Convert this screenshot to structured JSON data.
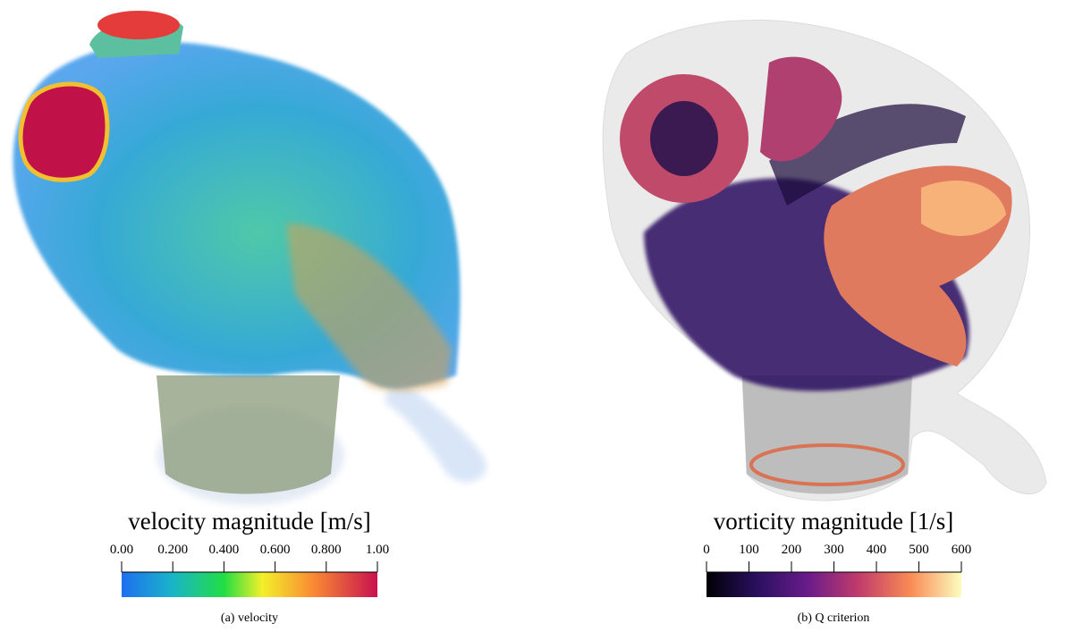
{
  "panels": [
    {
      "colorbar": {
        "title": "velocity magnitude [m/s]",
        "ticks": [
          "0.00",
          "0.200",
          "0.400",
          "0.600",
          "0.800",
          "1.00"
        ]
      },
      "caption": "(a) velocity"
    },
    {
      "colorbar": {
        "title": "vorticity magnitude [1/s]",
        "ticks": [
          "0",
          "100",
          "200",
          "300",
          "400",
          "500",
          "600"
        ]
      },
      "caption": "(b) Q criterion"
    }
  ]
}
